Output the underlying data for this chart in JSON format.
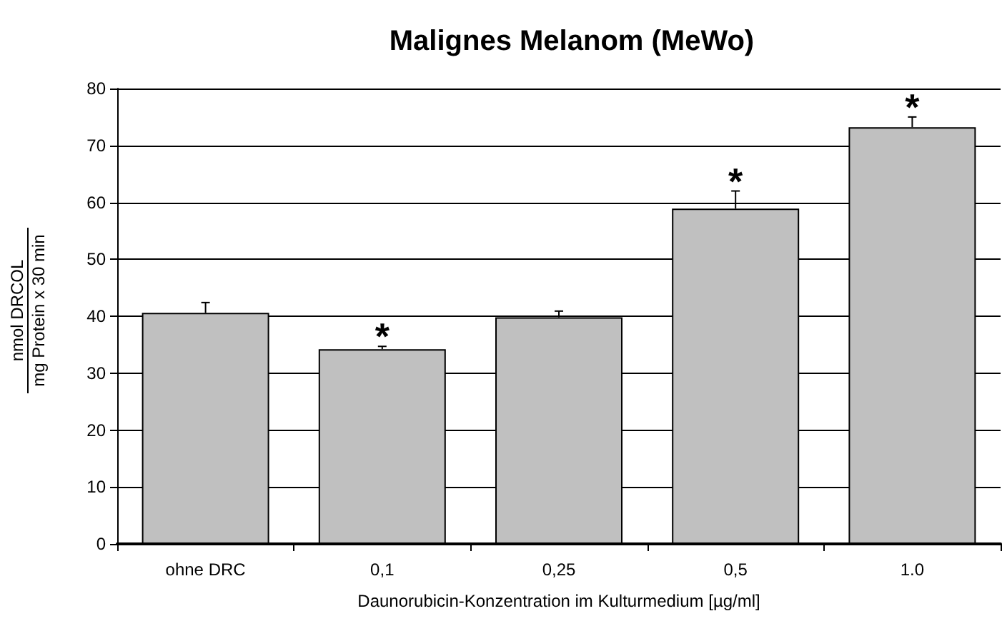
{
  "chart_data": {
    "type": "bar",
    "title": "Malignes Melanom (MeWo)",
    "xlabel": "Daunorubicin-Konzentration im Kulturmedium [µg/ml]",
    "ylabel": "nmol DRCOL\nmg Protein x 30 min",
    "categories": [
      "ohne DRC",
      "0,1",
      "0,25",
      "0,5",
      "1.0"
    ],
    "values": [
      40.6,
      34.2,
      39.8,
      58.9,
      73.2
    ],
    "errors": [
      [
        40.6,
        42.4
      ],
      [
        34.2,
        34.7
      ],
      [
        39.8,
        40.9
      ],
      [
        58.9,
        62.0
      ],
      [
        73.2,
        75.0
      ]
    ],
    "color": "#c0c0c0",
    "ylim": [
      0,
      80
    ],
    "yticks": [
      0,
      10,
      20,
      30,
      40,
      50,
      60,
      70,
      80
    ],
    "grid": "y",
    "annotations": [
      {
        "text": "*",
        "x": "0,1",
        "y": 34.7
      },
      {
        "text": "*",
        "x": "0,5",
        "y": 62.0
      },
      {
        "text": "*",
        "x": "1.0",
        "y": 75.0
      }
    ]
  }
}
